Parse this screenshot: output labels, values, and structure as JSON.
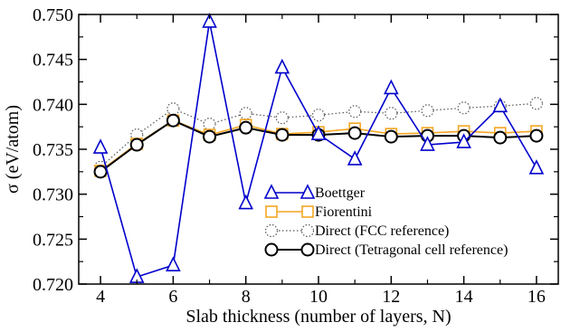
{
  "chart_data": {
    "type": "line",
    "xlabel": "Slab thickness (number of layers, N)",
    "ylabel": "σ (eV/atom)",
    "xlim": [
      3.4,
      16.6
    ],
    "ylim": [
      0.72,
      0.75
    ],
    "xticks": [
      4,
      6,
      8,
      10,
      12,
      14,
      16
    ],
    "xtick_labels": [
      "4",
      "6",
      "8",
      "10",
      "12",
      "14",
      "16"
    ],
    "yticks": [
      0.72,
      0.725,
      0.73,
      0.735,
      0.74,
      0.745,
      0.75
    ],
    "ytick_labels": [
      "0.720",
      "0.725",
      "0.730",
      "0.735",
      "0.740",
      "0.745",
      "0.750"
    ],
    "grid": false,
    "legend_position": "lower-right",
    "series": [
      {
        "name": "Boettger",
        "color": "#0000cc",
        "marker": "triangle",
        "line_style": "solid",
        "x": [
          4,
          5,
          6,
          7,
          8,
          9,
          10,
          11,
          12,
          13,
          14,
          15,
          16
        ],
        "y": [
          0.7352,
          0.7208,
          0.7221,
          0.7492,
          0.729,
          0.7441,
          0.7367,
          0.7339,
          0.7418,
          0.7355,
          0.7358,
          0.7398,
          0.7329
        ]
      },
      {
        "name": "Fiorentini",
        "color": "#f5a623",
        "marker": "square",
        "line_style": "solid",
        "x": [
          4,
          5,
          6,
          7,
          8,
          9,
          10,
          11,
          12,
          13,
          14,
          15,
          16
        ],
        "y": [
          0.7326,
          0.7356,
          0.7382,
          0.7366,
          0.7377,
          0.7367,
          0.7369,
          0.7373,
          0.7367,
          0.7368,
          0.737,
          0.7368,
          0.737
        ]
      },
      {
        "name": "Direct (FCC reference)",
        "color": "#555555",
        "marker": "circle-dotted",
        "line_style": "dotted",
        "x": [
          4,
          5,
          6,
          7,
          8,
          9,
          10,
          11,
          12,
          13,
          14,
          15,
          16
        ],
        "y": [
          0.733,
          0.7366,
          0.7395,
          0.7378,
          0.739,
          0.7385,
          0.7388,
          0.7392,
          0.739,
          0.7393,
          0.7396,
          0.7398,
          0.7401
        ]
      },
      {
        "name": "Direct (Tetragonal cell reference)",
        "color": "#000000",
        "marker": "circle",
        "line_style": "solid",
        "x": [
          4,
          5,
          6,
          7,
          8,
          9,
          10,
          11,
          12,
          13,
          14,
          15,
          16
        ],
        "y": [
          0.7325,
          0.7355,
          0.7382,
          0.7364,
          0.7374,
          0.7366,
          0.7366,
          0.7368,
          0.7364,
          0.7365,
          0.7365,
          0.7363,
          0.7365
        ]
      }
    ]
  }
}
